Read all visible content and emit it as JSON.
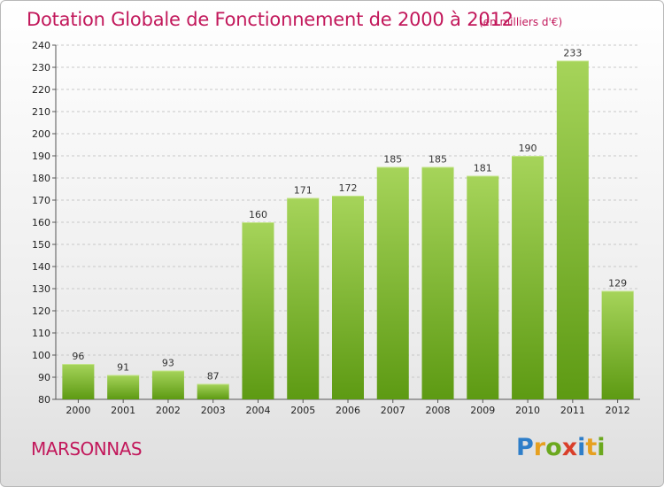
{
  "title": "Dotation Globale de Fonctionnement de 2000 à 2012",
  "subtitle": "(en milliers d'€)",
  "commune": "MARSONNAS",
  "logo": {
    "letters": [
      "P",
      "r",
      "o",
      "x",
      "i",
      "t",
      "i"
    ],
    "colors": [
      "#2e7ec9",
      "#e6a020",
      "#6ba81e",
      "#d93f2a",
      "#2e7ec9",
      "#e6a020",
      "#6ba81e"
    ]
  },
  "colors": {
    "bar_top": "#a6d45a",
    "bar_bottom": "#5d9a13",
    "title": "#c2185b",
    "grid": "#c8c8c8"
  },
  "chart_data": {
    "type": "bar",
    "title": "Dotation Globale de Fonctionnement de 2000 à 2012",
    "subtitle": "(en milliers d'€)",
    "categories": [
      "2000",
      "2001",
      "2002",
      "2003",
      "2004",
      "2005",
      "2006",
      "2007",
      "2008",
      "2009",
      "2010",
      "2011",
      "2012"
    ],
    "values": [
      96,
      91,
      93,
      87,
      160,
      171,
      172,
      185,
      185,
      181,
      190,
      233,
      129
    ],
    "ylim": [
      80,
      240
    ],
    "yticks": [
      80,
      90,
      100,
      110,
      120,
      130,
      140,
      150,
      160,
      170,
      180,
      190,
      200,
      210,
      220,
      230,
      240
    ],
    "grid": true,
    "legend": "none"
  }
}
